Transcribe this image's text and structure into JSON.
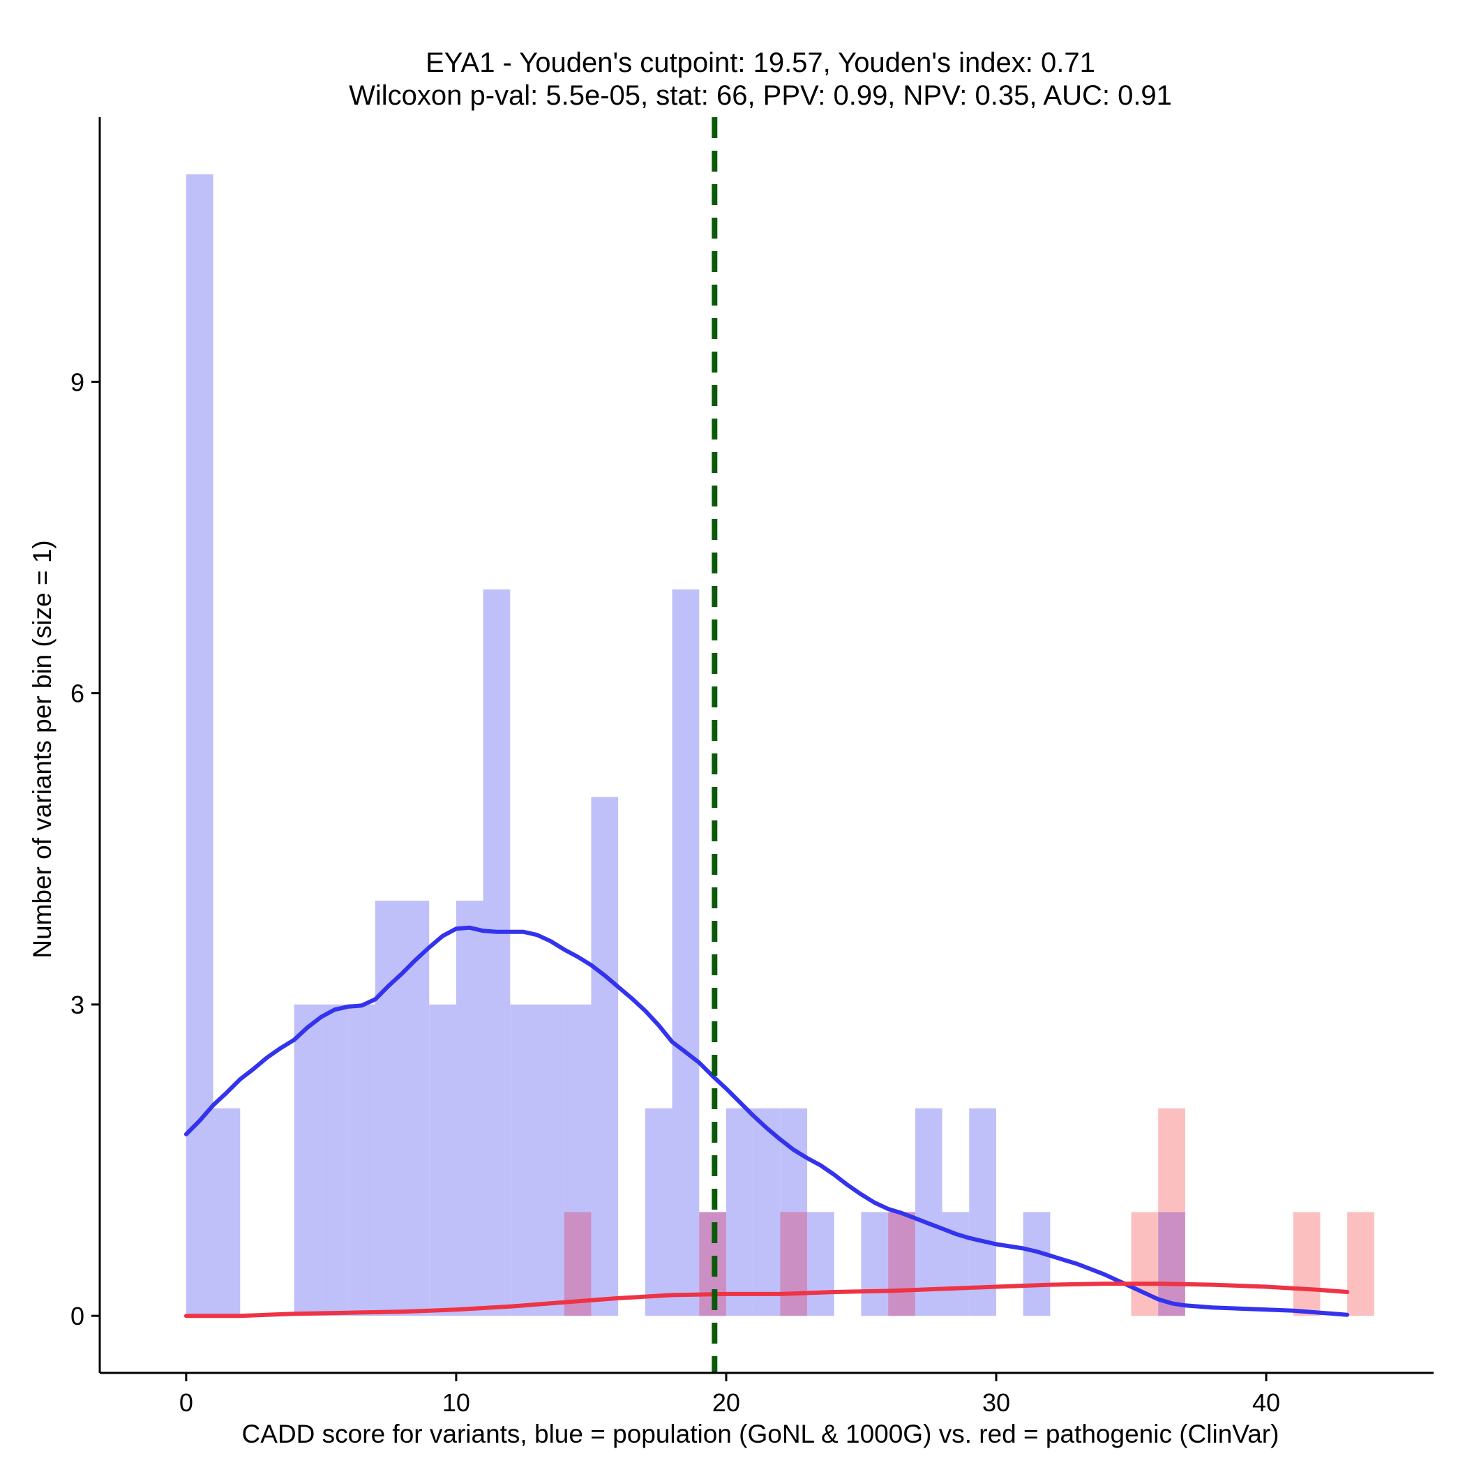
{
  "chart_data": {
    "type": "histogram",
    "title_line1": "EYA1 - Youden's cutpoint: 19.57, Youden's index: 0.71",
    "title_line2": "Wilcoxon p-val: 5.5e-05, stat: 66, PPV: 0.99, NPV: 0.35, AUC: 0.91",
    "xlabel": "CADD score for variants, blue = population (GoNL & 1000G) vs. red = pathogenic (ClinVar)",
    "ylabel": "Number of variants per bin (size = 1)",
    "xlim": [
      -3.2,
      46.2
    ],
    "ylim": [
      -0.55,
      11.55
    ],
    "x_ticks": [
      0,
      10,
      20,
      30,
      40
    ],
    "x_tick_labels": [
      "0",
      "10",
      "20",
      "30",
      "40"
    ],
    "y_ticks": [
      0,
      3,
      6,
      9
    ],
    "y_tick_labels": [
      "0",
      "3",
      "6",
      "9"
    ],
    "bin_width": 1,
    "cutpoint": 19.57,
    "colors": {
      "population_bar": "#bfbffa",
      "pathogenic_bar": "#fcbfbf",
      "overlap_bar": "#cc8fc4",
      "population_kde": "#3333ee",
      "pathogenic_kde": "#ee3344",
      "cutpoint_line": "#0a5a0a",
      "axis": "#000000"
    },
    "series": [
      {
        "name": "population (GoNL & 1000G)",
        "bins": [
          {
            "x": 0,
            "count": 11
          },
          {
            "x": 1,
            "count": 2
          },
          {
            "x": 4,
            "count": 3
          },
          {
            "x": 5,
            "count": 3
          },
          {
            "x": 6,
            "count": 3
          },
          {
            "x": 7,
            "count": 4
          },
          {
            "x": 8,
            "count": 4
          },
          {
            "x": 9,
            "count": 3
          },
          {
            "x": 10,
            "count": 4
          },
          {
            "x": 11,
            "count": 7
          },
          {
            "x": 12,
            "count": 3
          },
          {
            "x": 13,
            "count": 3
          },
          {
            "x": 14,
            "count": 3
          },
          {
            "x": 15,
            "count": 5
          },
          {
            "x": 17,
            "count": 2
          },
          {
            "x": 18,
            "count": 7
          },
          {
            "x": 19,
            "count": 1
          },
          {
            "x": 20,
            "count": 2
          },
          {
            "x": 21,
            "count": 2
          },
          {
            "x": 22,
            "count": 2
          },
          {
            "x": 23,
            "count": 1
          },
          {
            "x": 25,
            "count": 1
          },
          {
            "x": 26,
            "count": 1
          },
          {
            "x": 27,
            "count": 2
          },
          {
            "x": 28,
            "count": 1
          },
          {
            "x": 29,
            "count": 2
          },
          {
            "x": 31,
            "count": 1
          },
          {
            "x": 36,
            "count": 1
          }
        ],
        "kde": [
          [
            0,
            1.75
          ],
          [
            0.5,
            1.88
          ],
          [
            1,
            2.03
          ],
          [
            1.5,
            2.15
          ],
          [
            2,
            2.28
          ],
          [
            2.5,
            2.38
          ],
          [
            3,
            2.49
          ],
          [
            3.5,
            2.58
          ],
          [
            4,
            2.66
          ],
          [
            4.5,
            2.78
          ],
          [
            5,
            2.88
          ],
          [
            5.5,
            2.95
          ],
          [
            6,
            2.98
          ],
          [
            6.5,
            2.99
          ],
          [
            7,
            3.05
          ],
          [
            7.5,
            3.18
          ],
          [
            8,
            3.3
          ],
          [
            8.5,
            3.43
          ],
          [
            9,
            3.55
          ],
          [
            9.5,
            3.66
          ],
          [
            10,
            3.73
          ],
          [
            10.5,
            3.74
          ],
          [
            11,
            3.71
          ],
          [
            11.5,
            3.7
          ],
          [
            12,
            3.7
          ],
          [
            12.5,
            3.7
          ],
          [
            13,
            3.67
          ],
          [
            13.5,
            3.61
          ],
          [
            14,
            3.53
          ],
          [
            14.5,
            3.46
          ],
          [
            15,
            3.38
          ],
          [
            15.5,
            3.28
          ],
          [
            16,
            3.17
          ],
          [
            16.5,
            3.06
          ],
          [
            17,
            2.94
          ],
          [
            17.5,
            2.8
          ],
          [
            18,
            2.64
          ],
          [
            18.5,
            2.54
          ],
          [
            19,
            2.44
          ],
          [
            19.5,
            2.31
          ],
          [
            20,
            2.19
          ],
          [
            20.5,
            2.06
          ],
          [
            21,
            1.93
          ],
          [
            21.5,
            1.81
          ],
          [
            22,
            1.7
          ],
          [
            22.5,
            1.6
          ],
          [
            23,
            1.52
          ],
          [
            23.5,
            1.45
          ],
          [
            24,
            1.36
          ],
          [
            24.5,
            1.26
          ],
          [
            25,
            1.17
          ],
          [
            25.5,
            1.09
          ],
          [
            26,
            1.03
          ],
          [
            26.5,
            0.99
          ],
          [
            27,
            0.94
          ],
          [
            27.5,
            0.89
          ],
          [
            28,
            0.84
          ],
          [
            28.5,
            0.79
          ],
          [
            29,
            0.75
          ],
          [
            29.5,
            0.72
          ],
          [
            30,
            0.69
          ],
          [
            30.5,
            0.67
          ],
          [
            31,
            0.65
          ],
          [
            31.5,
            0.62
          ],
          [
            32,
            0.58
          ],
          [
            32.5,
            0.54
          ],
          [
            33,
            0.5
          ],
          [
            33.5,
            0.45
          ],
          [
            34,
            0.4
          ],
          [
            34.5,
            0.34
          ],
          [
            35,
            0.28
          ],
          [
            35.5,
            0.22
          ],
          [
            36,
            0.16
          ],
          [
            36.5,
            0.12
          ],
          [
            37,
            0.1
          ],
          [
            37.5,
            0.09
          ],
          [
            38,
            0.08
          ],
          [
            39,
            0.07
          ],
          [
            40,
            0.06
          ],
          [
            41,
            0.05
          ],
          [
            42,
            0.03
          ],
          [
            43,
            0.01
          ]
        ]
      },
      {
        "name": "pathogenic (ClinVar)",
        "bins": [
          {
            "x": 14,
            "count": 1
          },
          {
            "x": 19,
            "count": 1
          },
          {
            "x": 22,
            "count": 1
          },
          {
            "x": 26,
            "count": 1
          },
          {
            "x": 35,
            "count": 1
          },
          {
            "x": 36,
            "count": 2
          },
          {
            "x": 41,
            "count": 1
          },
          {
            "x": 43,
            "count": 1
          }
        ],
        "kde": [
          [
            0,
            0.0
          ],
          [
            1,
            0.0
          ],
          [
            2,
            0.0
          ],
          [
            4,
            0.02
          ],
          [
            6,
            0.03
          ],
          [
            8,
            0.04
          ],
          [
            10,
            0.06
          ],
          [
            12,
            0.09
          ],
          [
            14,
            0.13
          ],
          [
            16,
            0.17
          ],
          [
            18,
            0.2
          ],
          [
            20,
            0.21
          ],
          [
            22,
            0.21
          ],
          [
            24,
            0.23
          ],
          [
            26,
            0.24
          ],
          [
            28,
            0.26
          ],
          [
            30,
            0.28
          ],
          [
            32,
            0.3
          ],
          [
            34,
            0.31
          ],
          [
            36,
            0.31
          ],
          [
            38,
            0.3
          ],
          [
            40,
            0.28
          ],
          [
            42,
            0.25
          ],
          [
            43,
            0.23
          ]
        ]
      }
    ]
  }
}
